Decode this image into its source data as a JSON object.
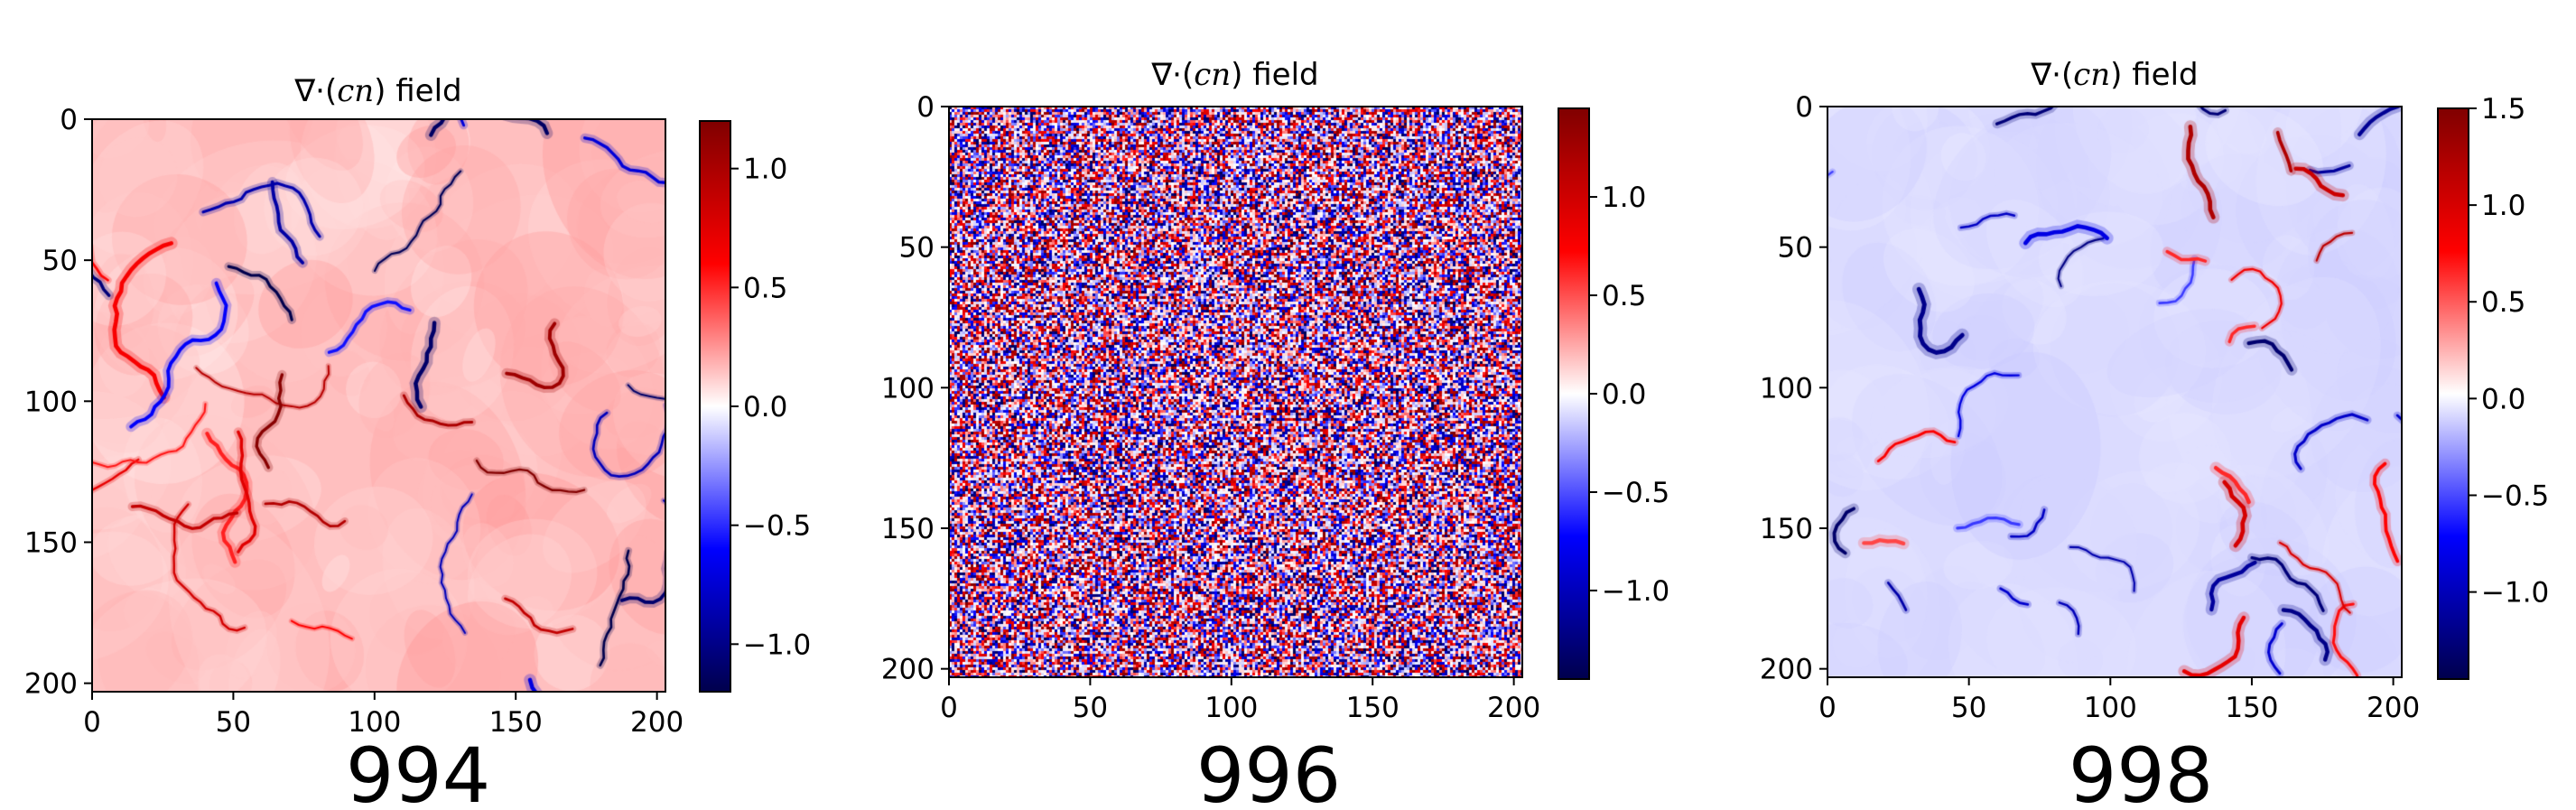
{
  "chart_data": [
    {
      "type": "heatmap",
      "title": "∇·(cn) field",
      "title_parts": {
        "op": "∇·",
        "lp": "(",
        "v1": "c",
        "v2": "n",
        "rp": ")",
        "tail": " field"
      },
      "caption": "994",
      "x_ticks": [
        "0",
        "50",
        "100",
        "150",
        "200"
      ],
      "y_ticks": [
        "0",
        "50",
        "100",
        "150",
        "200"
      ],
      "xlim": [
        0,
        203
      ],
      "ylim": [
        203,
        0
      ],
      "colorbar": {
        "ticks": [
          "1.0",
          "0.5",
          "0.0",
          "−0.5",
          "−1.0"
        ],
        "tick_values": [
          1.0,
          0.5,
          0.0,
          -0.5,
          -1.0
        ],
        "range": [
          -1.2,
          1.2
        ]
      },
      "field": {
        "pattern": "red-background-with-thin-blue-and-red-domain-walls",
        "background_value": 0.15
      }
    },
    {
      "type": "heatmap",
      "title": "∇·(cn) field",
      "title_parts": {
        "op": "∇·",
        "lp": "(",
        "v1": "c",
        "v2": "n",
        "rp": ")",
        "tail": " field"
      },
      "caption": "996",
      "x_ticks": [
        "0",
        "50",
        "100",
        "150",
        "200"
      ],
      "y_ticks": [
        "0",
        "50",
        "100",
        "150",
        "200"
      ],
      "xlim": [
        0,
        203
      ],
      "ylim": [
        203,
        0
      ],
      "colorbar": {
        "ticks": [
          "1.0",
          "0.5",
          "0.0",
          "−0.5",
          "−1.0"
        ],
        "tick_values": [
          1.0,
          0.5,
          0.0,
          -0.5,
          -1.0
        ],
        "range": [
          -1.45,
          1.45
        ]
      },
      "field": {
        "pattern": "uncorrelated-noise",
        "background_value": 0.0
      }
    },
    {
      "type": "heatmap",
      "title": "∇·(cn) field",
      "title_parts": {
        "op": "∇·",
        "lp": "(",
        "v1": "c",
        "v2": "n",
        "rp": ")",
        "tail": " field"
      },
      "caption": "998",
      "x_ticks": [
        "0",
        "50",
        "100",
        "150",
        "200"
      ],
      "y_ticks": [
        "0",
        "50",
        "100",
        "150",
        "200"
      ],
      "xlim": [
        0,
        203
      ],
      "ylim": [
        203,
        0
      ],
      "colorbar": {
        "ticks": [
          "1.5",
          "1.0",
          "0.5",
          "0.0",
          "−0.5",
          "−1.0"
        ],
        "tick_values": [
          1.5,
          1.0,
          0.5,
          0.0,
          -0.5,
          -1.0
        ],
        "range": [
          -1.45,
          1.5
        ]
      },
      "field": {
        "pattern": "light-blue-background-with-sparse-red-and-blue-defects",
        "background_value": -0.08
      }
    }
  ],
  "colormap": {
    "name": "seismic",
    "low": "#00004c",
    "mid_low": "#0000ff",
    "mid": "#ffffff",
    "mid_high": "#ff0000",
    "high": "#800000"
  }
}
